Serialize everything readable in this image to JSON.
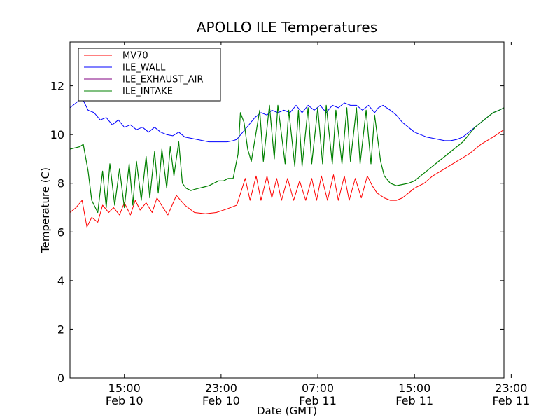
{
  "chart_data": {
    "type": "line",
    "title": "APOLLO ILE Temperatures",
    "xlabel": "Date (GMT)",
    "ylabel": "Temperature (C)",
    "xlim_hours": [
      10.5,
      46.4
    ],
    "ylim": [
      0,
      13.8
    ],
    "yticks": [
      0,
      2,
      4,
      6,
      8,
      10,
      12
    ],
    "xticks": [
      {
        "hours": 15,
        "time": "15:00",
        "date": "Feb 10"
      },
      {
        "hours": 23,
        "time": "23:00",
        "date": "Feb 10"
      },
      {
        "hours": 31,
        "time": "07:00",
        "date": "Feb 11"
      },
      {
        "hours": 39,
        "time": "15:00",
        "date": "Feb 11"
      },
      {
        "hours": 47,
        "time": "23:00",
        "date": "Feb 11"
      }
    ],
    "grid": false,
    "legend_position": "top-left",
    "series": [
      {
        "name": "MV70",
        "color": "#ff0000",
        "x": [
          10.5,
          11.0,
          11.5,
          11.9,
          12.3,
          12.8,
          13.2,
          13.7,
          14.1,
          14.6,
          15.0,
          15.5,
          15.9,
          16.3,
          16.8,
          17.3,
          17.7,
          18.2,
          18.6,
          19.3,
          20.0,
          20.8,
          21.7,
          22.6,
          23.5,
          24.3,
          25.0,
          25.4,
          25.9,
          26.3,
          26.8,
          27.2,
          27.6,
          28.0,
          28.5,
          29.0,
          29.5,
          30.0,
          30.5,
          30.9,
          31.3,
          31.8,
          32.3,
          32.7,
          33.2,
          33.6,
          34.1,
          34.6,
          35.1,
          35.5,
          35.9,
          36.5,
          37.0,
          37.5,
          38.0,
          38.5,
          39.0,
          39.8,
          40.5,
          41.5,
          42.5,
          43.5,
          44.5,
          45.5,
          46.4
        ],
        "y": [
          6.8,
          7.0,
          7.3,
          6.2,
          6.6,
          6.4,
          7.1,
          6.8,
          7.0,
          6.7,
          7.2,
          6.7,
          7.3,
          6.9,
          7.2,
          6.8,
          7.4,
          7.0,
          6.7,
          7.5,
          7.1,
          6.8,
          6.75,
          6.8,
          6.95,
          7.1,
          8.2,
          7.3,
          8.3,
          7.3,
          8.3,
          7.4,
          8.2,
          7.3,
          8.2,
          7.3,
          8.1,
          7.3,
          8.2,
          7.3,
          8.3,
          7.3,
          8.35,
          7.3,
          8.3,
          7.3,
          8.2,
          7.4,
          8.3,
          7.9,
          7.6,
          7.4,
          7.3,
          7.3,
          7.4,
          7.6,
          7.8,
          8.0,
          8.3,
          8.6,
          8.9,
          9.2,
          9.6,
          9.9,
          10.2
        ]
      },
      {
        "name": "ILE_WALL",
        "color": "#0000ff",
        "x": [
          10.5,
          11.0,
          11.5,
          12.0,
          12.5,
          13.0,
          13.5,
          14.0,
          14.5,
          15.0,
          15.5,
          16.0,
          16.5,
          17.0,
          17.5,
          18.0,
          18.5,
          19.0,
          19.5,
          20.0,
          20.5,
          21.0,
          21.5,
          22.0,
          22.5,
          23.0,
          23.5,
          24.0,
          24.3,
          24.8,
          25.3,
          25.8,
          26.3,
          26.8,
          27.2,
          27.7,
          28.2,
          28.7,
          29.2,
          29.7,
          30.2,
          30.7,
          31.2,
          31.7,
          32.2,
          32.7,
          33.2,
          33.7,
          34.2,
          34.7,
          35.2,
          35.7,
          36.0,
          36.4,
          37.0,
          37.5,
          38.0,
          38.5,
          39.0,
          39.5,
          40.0,
          40.5,
          41.0,
          41.5,
          42.0,
          42.5,
          43.0,
          43.5,
          44.0,
          44.5,
          45.0,
          45.5,
          46.0,
          46.4
        ],
        "y": [
          11.1,
          11.3,
          11.5,
          11.0,
          10.9,
          10.6,
          10.7,
          10.4,
          10.6,
          10.3,
          10.4,
          10.2,
          10.3,
          10.1,
          10.3,
          10.1,
          10.0,
          9.95,
          10.1,
          9.9,
          9.85,
          9.8,
          9.75,
          9.7,
          9.7,
          9.7,
          9.7,
          9.75,
          9.8,
          10.1,
          10.4,
          10.7,
          10.9,
          10.8,
          11.0,
          10.9,
          11.0,
          10.9,
          11.2,
          10.9,
          11.2,
          11.0,
          11.2,
          10.9,
          11.2,
          11.1,
          11.3,
          11.2,
          11.2,
          11.0,
          11.2,
          10.9,
          11.1,
          11.2,
          11.0,
          10.8,
          10.5,
          10.3,
          10.1,
          10.0,
          9.9,
          9.85,
          9.8,
          9.75,
          9.75,
          9.8,
          9.9,
          10.1,
          10.3,
          10.5,
          10.7,
          10.9,
          11.0,
          11.1
        ]
      },
      {
        "name": "ILE_EXHAUST_AIR",
        "color": "#800080",
        "x": [],
        "y": []
      },
      {
        "name": "ILE_INTAKE",
        "color": "#008000",
        "x": [
          10.5,
          11.3,
          11.6,
          12.0,
          12.3,
          12.8,
          13.2,
          13.5,
          13.8,
          14.2,
          14.6,
          15.0,
          15.4,
          15.7,
          16.0,
          16.4,
          16.8,
          17.1,
          17.5,
          17.8,
          18.1,
          18.5,
          18.8,
          19.1,
          19.5,
          19.8,
          20.1,
          20.5,
          20.8,
          21.2,
          21.6,
          22.0,
          22.4,
          22.8,
          23.2,
          23.6,
          24.0,
          24.4,
          24.6,
          24.9,
          25.2,
          25.5,
          26.2,
          26.5,
          27.0,
          27.4,
          27.7,
          28.3,
          28.6,
          29.1,
          29.4,
          29.7,
          30.2,
          30.5,
          31.0,
          31.4,
          31.7,
          32.2,
          32.5,
          33.0,
          33.4,
          33.7,
          34.2,
          34.5,
          35.0,
          35.4,
          35.7,
          36.2,
          36.5,
          37.0,
          37.5,
          38.0,
          38.5,
          39.0,
          39.5,
          40.0,
          40.5,
          41.0,
          41.5,
          42.0,
          42.5,
          43.0,
          43.5,
          44.0,
          44.5,
          45.0,
          45.5,
          46.0,
          46.4
        ],
        "y": [
          9.4,
          9.5,
          9.6,
          8.5,
          7.3,
          6.8,
          8.5,
          7.0,
          8.8,
          7.1,
          8.6,
          7.0,
          8.8,
          7.1,
          8.9,
          7.3,
          9.1,
          7.4,
          9.3,
          7.6,
          9.4,
          7.8,
          9.5,
          8.3,
          9.7,
          8.0,
          7.8,
          7.7,
          7.75,
          7.8,
          7.85,
          7.9,
          8.0,
          8.1,
          8.1,
          8.2,
          8.2,
          9.2,
          10.9,
          10.5,
          9.4,
          8.9,
          11.0,
          8.9,
          11.2,
          9.0,
          11.2,
          8.8,
          11.0,
          8.7,
          11.0,
          8.7,
          11.1,
          8.8,
          11.1,
          8.8,
          11.2,
          8.8,
          11.0,
          8.8,
          11.1,
          8.9,
          11.1,
          8.8,
          11.0,
          8.8,
          10.8,
          8.9,
          8.3,
          8.0,
          7.9,
          7.95,
          8.0,
          8.1,
          8.3,
          8.5,
          8.7,
          8.9,
          9.1,
          9.3,
          9.5,
          9.7,
          10.0,
          10.3,
          10.5,
          10.7,
          10.9,
          11.0,
          11.1
        ]
      }
    ]
  }
}
